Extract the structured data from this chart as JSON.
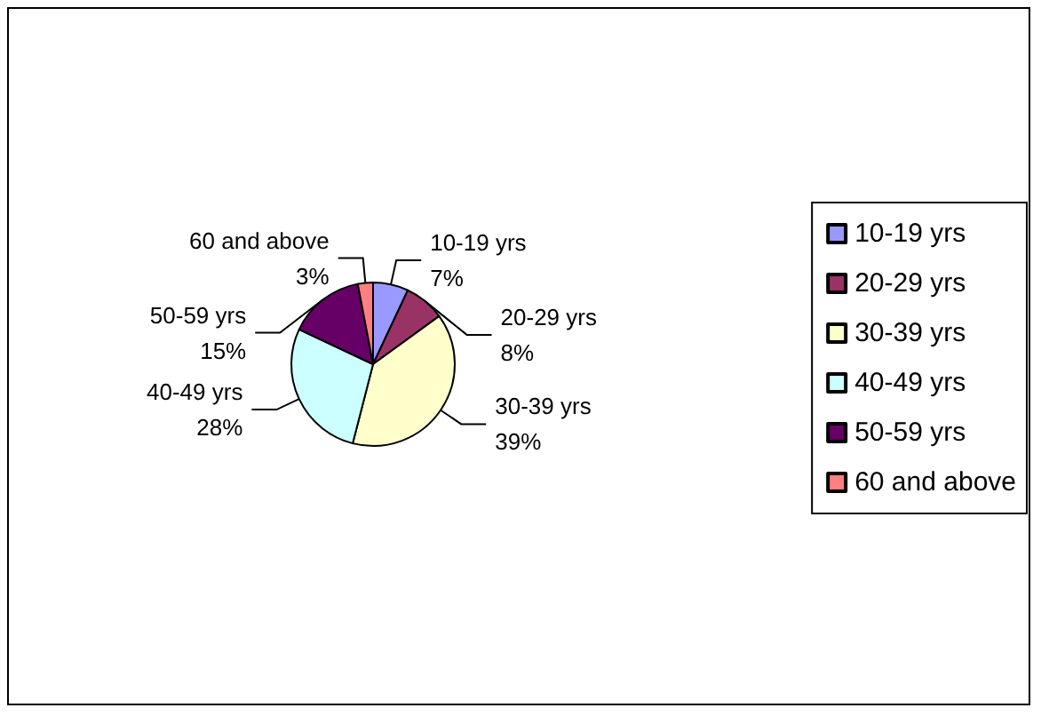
{
  "chart_data": {
    "type": "pie",
    "categories": [
      "10-19 yrs",
      "20-29 yrs",
      "30-39 yrs",
      "40-49 yrs",
      "50-59 yrs",
      "60 and above"
    ],
    "values": [
      7,
      8,
      39,
      28,
      15,
      3
    ],
    "colors": [
      "#9999ff",
      "#993366",
      "#ffffcc",
      "#ccffff",
      "#660066",
      "#ff8080"
    ],
    "value_labels": [
      "7%",
      "8%",
      "39%",
      "28%",
      "15%",
      "3%"
    ],
    "legend": "right"
  }
}
